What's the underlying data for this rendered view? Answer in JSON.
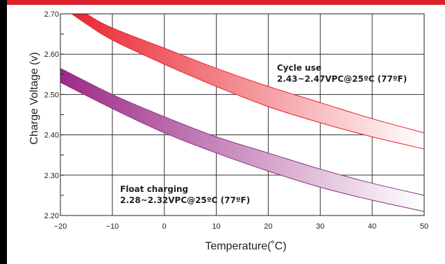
{
  "chart_data": {
    "type": "area",
    "xlabel": "Temperature(˚C)",
    "ylabel": "Charge Voltage  (v)",
    "xlim": [
      -20,
      50
    ],
    "ylim": [
      2.2,
      2.7
    ],
    "xticks": [
      -20,
      -10,
      0,
      10,
      20,
      30,
      40,
      50
    ],
    "yticks": [
      "2.20",
      "2.30",
      "2.40",
      "2.50",
      "2.60",
      "2.70"
    ],
    "grid": true,
    "series": [
      {
        "name": "Cycle use",
        "label_line1": "Cycle use",
        "label_line2": "2.43~2.47VPC@25ºC (77ºF)",
        "color_start": "#e8202a",
        "color_end": "#ffffff",
        "edge_color": "#e8202a",
        "x": [
          -20,
          -15,
          -10,
          0,
          10,
          20,
          30,
          40,
          50
        ],
        "upper": [
          2.745,
          2.7,
          2.665,
          2.615,
          2.565,
          2.52,
          2.48,
          2.44,
          2.405
        ],
        "lower": [
          2.72,
          2.675,
          2.635,
          2.575,
          2.52,
          2.47,
          2.43,
          2.395,
          2.365
        ]
      },
      {
        "name": "Float charging",
        "label_line1": "Float charging",
        "label_line2": "2.28~2.32VPC@25ºC (77ºF)",
        "color_start": "#9c2a86",
        "color_end": "#ffffff",
        "edge_color": "#8a3080",
        "x": [
          -20,
          -10,
          0,
          10,
          20,
          30,
          40,
          50
        ],
        "upper": [
          2.565,
          2.5,
          2.445,
          2.395,
          2.355,
          2.315,
          2.28,
          2.25
        ],
        "lower": [
          2.53,
          2.465,
          2.405,
          2.355,
          2.31,
          2.27,
          2.238,
          2.21
        ]
      }
    ]
  }
}
